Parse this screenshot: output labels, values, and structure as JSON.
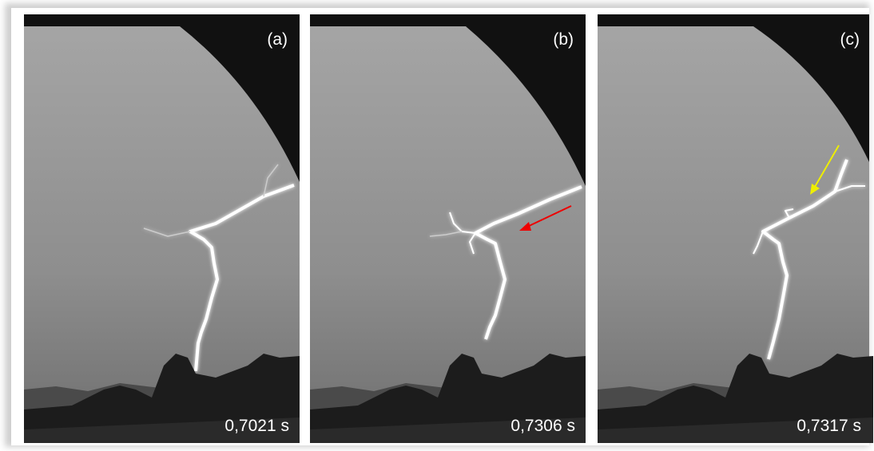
{
  "panels": [
    {
      "label": "(a)",
      "time": "0,7021 s"
    },
    {
      "label": "(b)",
      "time": "0,7306 s"
    },
    {
      "label": "(c)",
      "time": "0,7317 s"
    }
  ]
}
